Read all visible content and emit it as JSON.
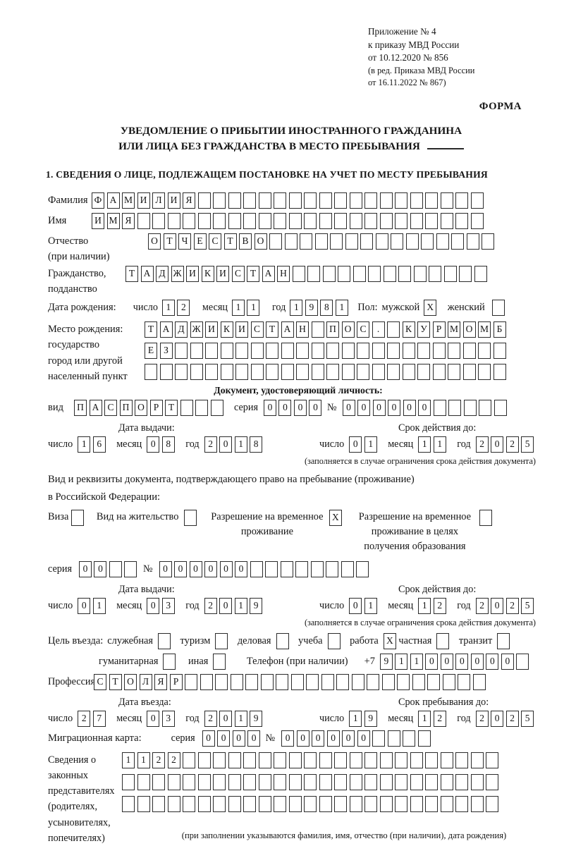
{
  "labels": {
    "day": "число",
    "month": "месяц",
    "year": "год",
    "series": "серия",
    "number": "№",
    "issue_date": "Дата выдачи:",
    "valid_until": "Срок действия до:",
    "validity_note": "(заполняется в случае ограничения срока действия документа)"
  },
  "header": {
    "ref_lines": [
      "Приложение № 4",
      "к приказу МВД России",
      "от 10.12.2020 № 856"
    ],
    "ref_sub_lines": [
      "(в ред. Приказа МВД России",
      "от 16.11.2022 № 867)"
    ],
    "forma": "ФОРМА"
  },
  "title": {
    "line1": "УВЕДОМЛЕНИЕ О ПРИБЫТИИ ИНОСТРАННОГО ГРАЖДАНИНА",
    "line2": "ИЛИ ЛИЦА БЕЗ ГРАЖДАНСТВА В МЕСТО ПРЕБЫВАНИЯ"
  },
  "section1_heading": "1. СВЕДЕНИЯ О ЛИЦЕ, ПОДЛЕЖАЩЕМ ПОСТАНОВКЕ НА УЧЕТ ПО МЕСТУ ПРЕБЫВАНИЯ",
  "person": {
    "surname": {
      "label": "Фамилия",
      "cells": {
        "count": 26,
        "value": "ФАМИЛИЯ"
      }
    },
    "given_name": {
      "label": "Имя",
      "cells": {
        "count": 26,
        "value": "ИМЯ"
      }
    },
    "patronymic": {
      "label": "Отчество",
      "label_note": "(при наличии)",
      "cells": {
        "count": 23,
        "value": "ОТЧЕСТВО"
      }
    },
    "citizenship": {
      "label": "Гражданство,",
      "label2": "подданство",
      "cells": {
        "count": 24,
        "value": "ТАДЖИКИСТАН"
      }
    },
    "birth_date": {
      "label": "Дата рождения:",
      "day": {
        "count": 2,
        "value": "12"
      },
      "month": {
        "count": 2,
        "value": "11"
      },
      "year": {
        "count": 4,
        "value": "1981"
      }
    },
    "sex": {
      "label": "Пол:",
      "male_label": "мужской",
      "male_box": {
        "count": 1,
        "value": "X"
      },
      "female_label": "женский",
      "female_box": {
        "count": 1,
        "value": ""
      }
    },
    "birth_place": {
      "label_lines": [
        "Место рождения:",
        "государство",
        "город или другой",
        "населенный пункт"
      ],
      "row1": {
        "count": 24,
        "value": "ТАДЖИКИСТАН ПОС. КУРМОМБ"
      },
      "row2": {
        "count": 24,
        "value": "ЕЗ"
      },
      "row3": {
        "count": 24,
        "value": ""
      }
    }
  },
  "identity_doc": {
    "heading": "Документ, удостоверяющий личность:",
    "kind_label": "вид",
    "kind": {
      "count": 10,
      "value": "ПАСПОРТ"
    },
    "series": {
      "count": 4,
      "value": "0000"
    },
    "number": {
      "count": 11,
      "value": "000000"
    },
    "issue": {
      "day": {
        "count": 2,
        "value": "16"
      },
      "month": {
        "count": 2,
        "value": "08"
      },
      "year": {
        "count": 4,
        "value": "2018"
      }
    },
    "valid": {
      "day": {
        "count": 2,
        "value": "01"
      },
      "month": {
        "count": 2,
        "value": "11"
      },
      "year": {
        "count": 4,
        "value": "2025"
      }
    }
  },
  "residence_doc": {
    "intro_line1": "Вид и реквизиты документа, подтверждающего право на пребывание (проживание)",
    "intro_line2": "в Российской Федерации:",
    "options": [
      {
        "label": "Виза",
        "box": {
          "count": 1,
          "value": ""
        }
      },
      {
        "label": "Вид на жительство",
        "box": {
          "count": 1,
          "value": ""
        }
      },
      {
        "label": "Разрешение на временное проживание",
        "box": {
          "count": 1,
          "value": "X"
        }
      },
      {
        "label": "Разрешение на временное проживание в целях получения образования",
        "box": {
          "count": 1,
          "value": ""
        }
      }
    ],
    "series": {
      "count": 4,
      "value": "00"
    },
    "number": {
      "count": 14,
      "value": "000000"
    },
    "issue": {
      "day": {
        "count": 2,
        "value": "01"
      },
      "month": {
        "count": 2,
        "value": "03"
      },
      "year": {
        "count": 4,
        "value": "2019"
      }
    },
    "valid": {
      "day": {
        "count": 2,
        "value": "01"
      },
      "month": {
        "count": 2,
        "value": "12"
      },
      "year": {
        "count": 4,
        "value": "2025"
      }
    }
  },
  "visit": {
    "purpose_label": "Цель въезда:",
    "purposes_row1": [
      {
        "label": "служебная",
        "box": {
          "count": 1,
          "value": ""
        }
      },
      {
        "label": "туризм",
        "box": {
          "count": 1,
          "value": ""
        }
      },
      {
        "label": "деловая",
        "box": {
          "count": 1,
          "value": ""
        }
      },
      {
        "label": "учеба",
        "box": {
          "count": 1,
          "value": ""
        }
      },
      {
        "label": "работа",
        "box": {
          "count": 1,
          "value": "X"
        }
      },
      {
        "label": "частная",
        "box": {
          "count": 1,
          "value": ""
        }
      },
      {
        "label": "транзит",
        "box": {
          "count": 1,
          "value": ""
        }
      }
    ],
    "purposes_row2": [
      {
        "label": "гуманитарная",
        "box": {
          "count": 1,
          "value": ""
        }
      },
      {
        "label": "иная",
        "box": {
          "count": 1,
          "value": ""
        }
      }
    ],
    "phone_label": "Телефон (при наличии)",
    "phone_prefix": "+7",
    "phone": {
      "count": 10,
      "value": "911000000"
    },
    "profession_label": "Профессия",
    "profession": {
      "count": 26,
      "value": "СТОЛЯР"
    },
    "entry_date_label": "Дата въезда:",
    "entry": {
      "day": {
        "count": 2,
        "value": "27"
      },
      "month": {
        "count": 2,
        "value": "03"
      },
      "year": {
        "count": 4,
        "value": "2019"
      }
    },
    "stay_until_label": "Срок пребывания до:",
    "stay": {
      "day": {
        "count": 2,
        "value": "19"
      },
      "month": {
        "count": 2,
        "value": "12"
      },
      "year": {
        "count": 4,
        "value": "2025"
      }
    },
    "migration_card_label": "Миграционная карта:",
    "migration_series": {
      "count": 4,
      "value": "0000"
    },
    "migration_number": {
      "count": 10,
      "value": "000000"
    }
  },
  "representatives": {
    "label_lines": [
      "Сведения о",
      "законных",
      "представителях",
      "(родителях,",
      "усыновителях,",
      "попечителях)"
    ],
    "row1": {
      "count": 25,
      "value": "1122"
    },
    "row2": {
      "count": 25,
      "value": ""
    },
    "row3": {
      "count": 25,
      "value": ""
    },
    "note": "(при заполнении указываются фамилия, имя, отчество (при наличии), дата рождения)"
  }
}
